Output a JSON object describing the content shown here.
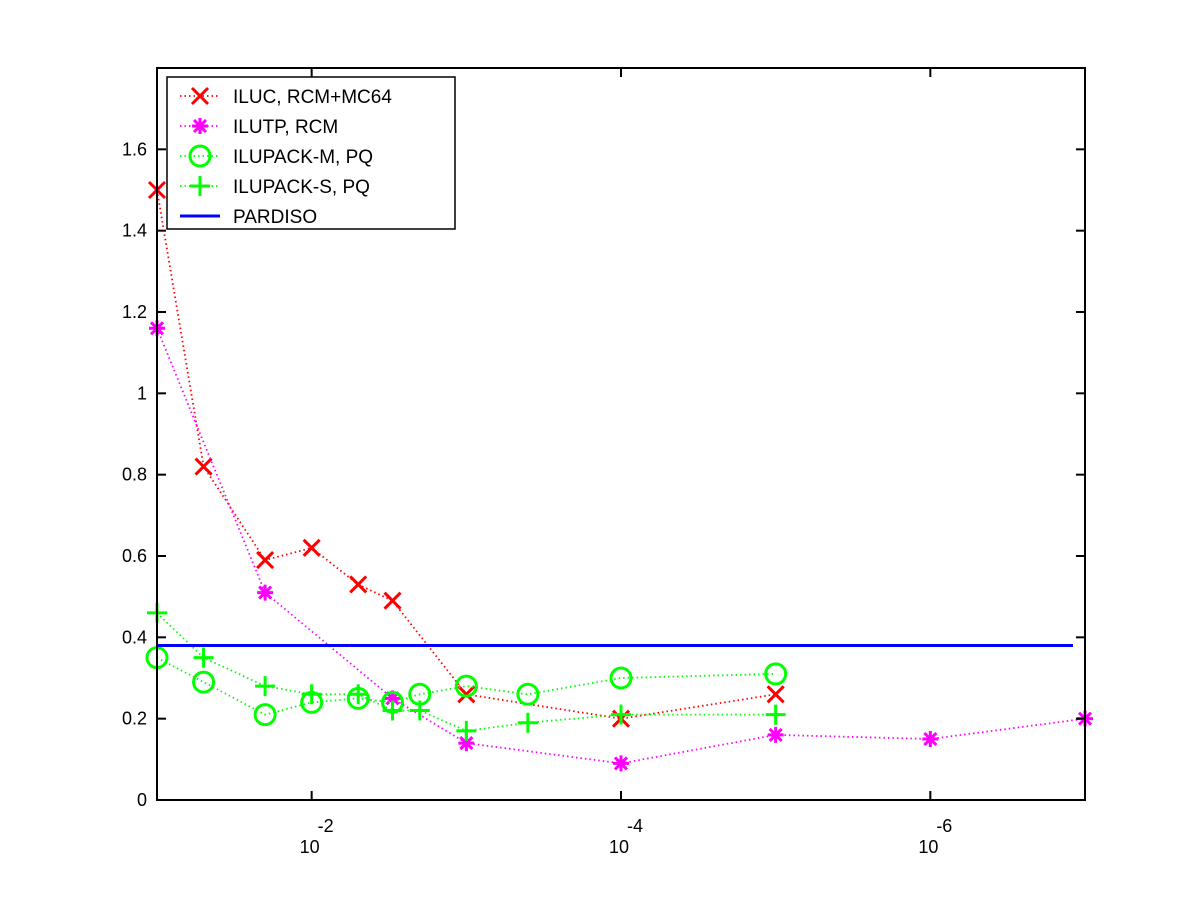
{
  "chart_data": {
    "type": "line",
    "x_scale": "log10-reversed",
    "xlim": [
      0.1,
      1e-07
    ],
    "ylim": [
      0,
      1.8
    ],
    "grid": false,
    "legend_position": "top-left",
    "x_ticks": [
      {
        "base": "10",
        "exp": "-2",
        "value": 0.01
      },
      {
        "base": "10",
        "exp": "-4",
        "value": 0.0001
      },
      {
        "base": "10",
        "exp": "-6",
        "value": 1e-06
      }
    ],
    "y_ticks": [
      "0",
      "0.2",
      "0.4",
      "0.6",
      "0.8",
      "1",
      "1.2",
      "1.4",
      "1.6"
    ],
    "series": [
      {
        "name": "ILUC, RCM+MC64",
        "color": "#ff0000",
        "marker": "x-mark",
        "line": "dotted",
        "points": [
          [
            0.1,
            1.5
          ],
          [
            0.05,
            0.82
          ],
          [
            0.02,
            0.59
          ],
          [
            0.01,
            0.62
          ],
          [
            0.005,
            0.53
          ],
          [
            0.003,
            0.49
          ],
          [
            0.001,
            0.26
          ],
          [
            0.0001,
            0.2
          ],
          [
            1e-05,
            0.26
          ]
        ]
      },
      {
        "name": "ILUTP, RCM",
        "color": "#ff00ff",
        "marker": "asterisk",
        "line": "dotted",
        "points": [
          [
            0.1,
            1.16
          ],
          [
            0.02,
            0.51
          ],
          [
            0.003,
            0.25
          ],
          [
            0.001,
            0.14
          ],
          [
            0.0001,
            0.09
          ],
          [
            1e-05,
            0.16
          ],
          [
            1e-06,
            0.15
          ],
          [
            1e-07,
            0.2
          ]
        ]
      },
      {
        "name": "ILUPACK-M, PQ",
        "color": "#00ff00",
        "marker": "circle",
        "line": "dotted",
        "points": [
          [
            0.1,
            0.35
          ],
          [
            0.05,
            0.29
          ],
          [
            0.02,
            0.21
          ],
          [
            0.01,
            0.24
          ],
          [
            0.005,
            0.25
          ],
          [
            0.003,
            0.24
          ],
          [
            0.002,
            0.26
          ],
          [
            0.001,
            0.28
          ],
          [
            0.0004,
            0.26
          ],
          [
            0.0001,
            0.3
          ],
          [
            1e-05,
            0.31
          ]
        ]
      },
      {
        "name": "ILUPACK-S, PQ",
        "color": "#00ff00",
        "marker": "plus",
        "line": "dotted",
        "points": [
          [
            0.1,
            0.46
          ],
          [
            0.05,
            0.35
          ],
          [
            0.02,
            0.28
          ],
          [
            0.01,
            0.26
          ],
          [
            0.005,
            0.26
          ],
          [
            0.003,
            0.22
          ],
          [
            0.002,
            0.22
          ],
          [
            0.001,
            0.17
          ],
          [
            0.0004,
            0.19
          ],
          [
            0.0001,
            0.21
          ],
          [
            1e-05,
            0.21
          ]
        ]
      },
      {
        "name": "PARDISO",
        "color": "#0000ff",
        "marker": "none",
        "line": "solid",
        "constant": 0.38
      }
    ]
  }
}
